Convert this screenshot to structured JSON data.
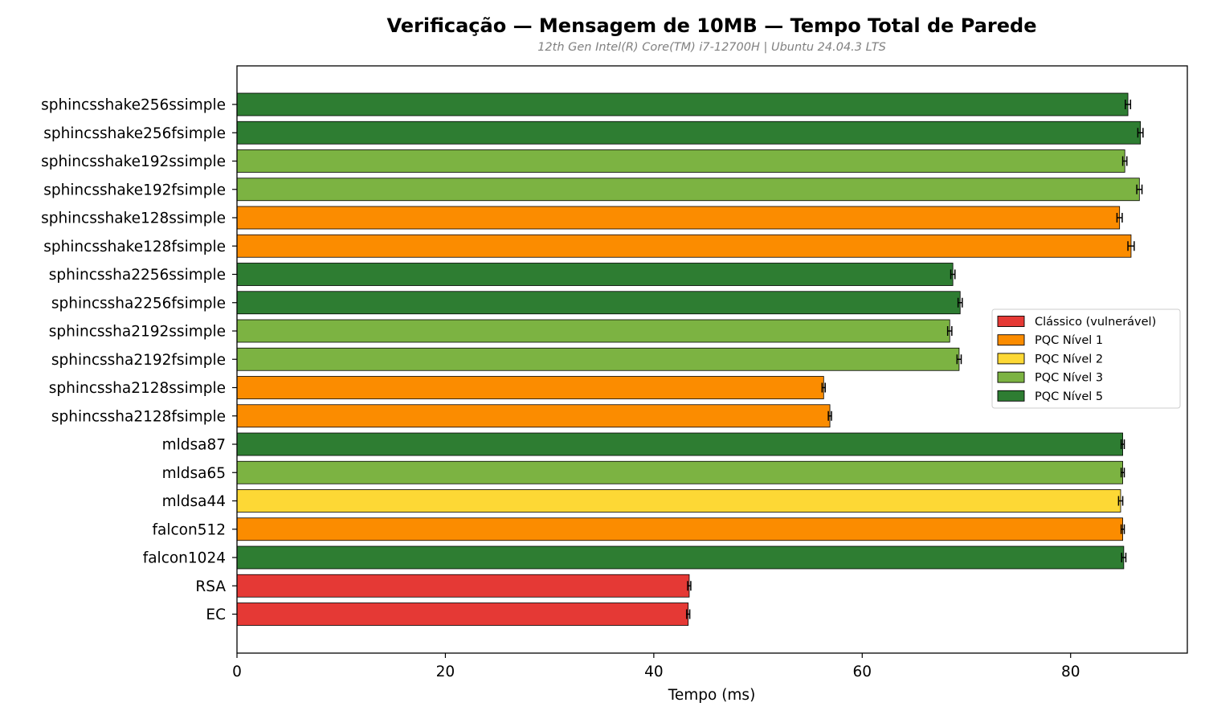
{
  "chart_data": {
    "type": "bar",
    "orientation": "horizontal",
    "title": "Verificação — Mensagem de 10MB — Tempo Total de Parede",
    "subtitle": "12th Gen Intel(R) Core(TM) i7-12700H | Ubuntu 24.04.3 LTS",
    "xlabel": "Tempo (ms)",
    "ylabel": "",
    "xlim": [
      0,
      91.2
    ],
    "xticks": [
      0,
      20,
      40,
      60,
      80
    ],
    "grid": false,
    "legend_position": "center-right",
    "categories": [
      "sphincsshake256ssimple",
      "sphincsshake256fsimple",
      "sphincsshake192ssimple",
      "sphincsshake192fsimple",
      "sphincsshake128ssimple",
      "sphincsshake128fsimple",
      "sphincssha2256ssimple",
      "sphincssha2256fsimple",
      "sphincssha2192ssimple",
      "sphincssha2192fsimple",
      "sphincssha2128ssimple",
      "sphincssha2128fsimple",
      "mldsa87",
      "mldsa65",
      "mldsa44",
      "falcon512",
      "falcon1024",
      "RSA",
      "EC"
    ],
    "values": [
      85.5,
      86.7,
      85.2,
      86.6,
      84.7,
      85.8,
      68.7,
      69.4,
      68.4,
      69.3,
      56.3,
      56.9,
      85.0,
      85.0,
      84.8,
      85.0,
      85.1,
      43.4,
      43.3
    ],
    "errors": [
      0.25,
      0.25,
      0.2,
      0.25,
      0.25,
      0.3,
      0.2,
      0.2,
      0.2,
      0.2,
      0.15,
      0.15,
      0.15,
      0.15,
      0.2,
      0.15,
      0.2,
      0.15,
      0.15
    ],
    "groups": [
      "PQC Nível 5",
      "PQC Nível 5",
      "PQC Nível 3",
      "PQC Nível 3",
      "PQC Nível 1",
      "PQC Nível 1",
      "PQC Nível 5",
      "PQC Nível 5",
      "PQC Nível 3",
      "PQC Nível 3",
      "PQC Nível 1",
      "PQC Nível 1",
      "PQC Nível 5",
      "PQC Nível 3",
      "PQC Nível 2",
      "PQC Nível 1",
      "PQC Nível 5",
      "Clássico (vulnerável)",
      "Clássico (vulnerável)"
    ],
    "legend": [
      {
        "label": "Clássico (vulnerável)",
        "color": "#e53935"
      },
      {
        "label": "PQC Nível 1",
        "color": "#fb8c00"
      },
      {
        "label": "PQC Nível 2",
        "color": "#fdd835"
      },
      {
        "label": "PQC Nível 3",
        "color": "#7cb342"
      },
      {
        "label": "PQC Nível 5",
        "color": "#2e7d32"
      }
    ]
  }
}
